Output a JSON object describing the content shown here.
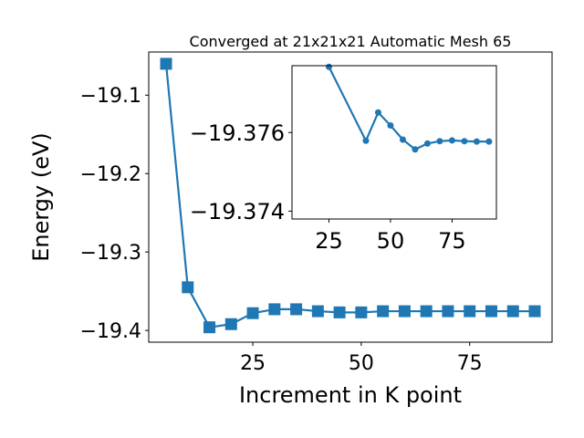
{
  "chart_data": [
    {
      "type": "line",
      "title": "Converged at 21x21x21 Automatic Mesh 65",
      "xlabel": "Increment in K point",
      "ylabel": "Energy (eV)",
      "xlim": [
        1,
        94
      ],
      "ylim": [
        -19.415,
        -19.045
      ],
      "xticks": [
        25,
        50,
        75
      ],
      "xtick_labels": [
        "25",
        "50",
        "75"
      ],
      "yticks": [
        -19.1,
        -19.2,
        -19.3,
        -19.4
      ],
      "ytick_labels": [
        "−19.1",
        "−19.2",
        "−19.3",
        "−19.4"
      ],
      "marker": "square",
      "color": "#1f77b4",
      "series": [
        {
          "x": [
            5,
            10,
            15,
            20,
            25,
            30,
            35,
            40,
            45,
            50,
            55,
            60,
            65,
            70,
            75,
            80,
            85,
            90
          ],
          "y": [
            -19.06,
            -19.345,
            -19.396,
            -19.392,
            -19.378,
            -19.373,
            -19.373,
            -19.3755,
            -19.377,
            -19.377,
            -19.3755,
            -19.3755,
            -19.3755,
            -19.3755,
            -19.3755,
            -19.3755,
            -19.3755,
            -19.3755
          ]
        }
      ]
    },
    {
      "type": "line",
      "title": "",
      "inset": true,
      "xlim": [
        10,
        93
      ],
      "ylim": [
        -19.3738,
        -19.3777
      ],
      "xticks": [
        25,
        50,
        75
      ],
      "xtick_labels": [
        "25",
        "50",
        "75"
      ],
      "yticks": [
        -19.376,
        -19.374
      ],
      "ytick_labels": [
        "−19.376",
        "−19.374"
      ],
      "marker": "circle",
      "color": "#1f77b4",
      "series": [
        {
          "x": [
            25,
            40,
            45,
            50,
            55,
            60,
            65,
            70,
            75,
            80,
            85,
            90
          ],
          "y": [
            -19.37767,
            -19.37579,
            -19.37651,
            -19.37618,
            -19.37582,
            -19.37557,
            -19.37572,
            -19.37578,
            -19.3758,
            -19.37578,
            -19.37577,
            -19.37577
          ]
        }
      ]
    }
  ]
}
